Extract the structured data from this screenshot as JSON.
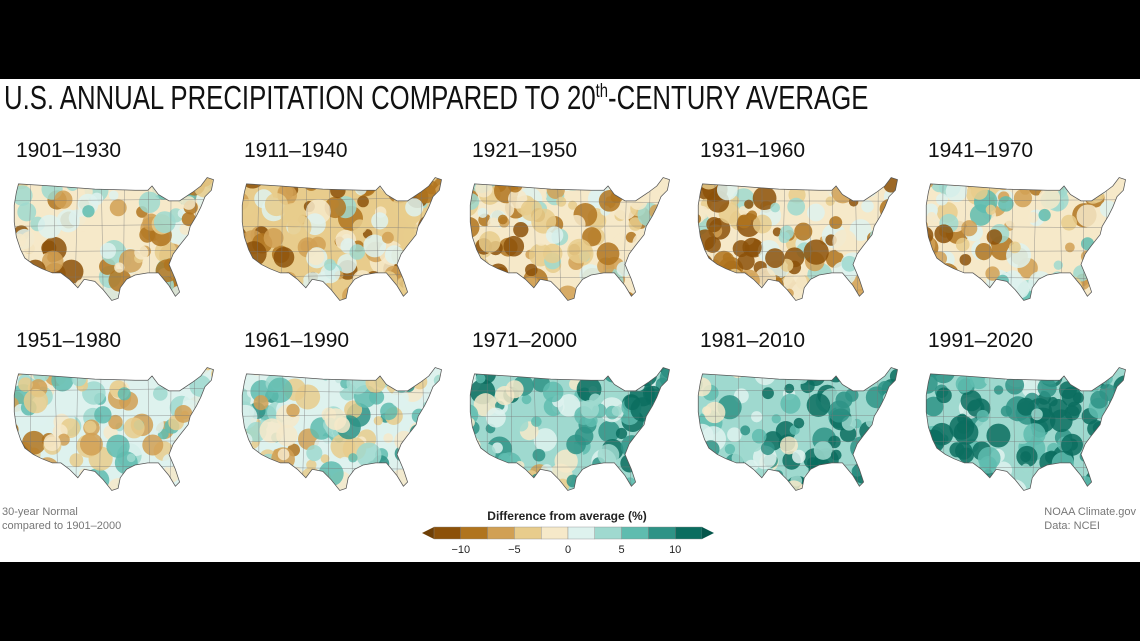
{
  "title": {
    "prefix": "U.S. ANNUAL PRECIPITATION COMPARED TO 20",
    "sup": "th",
    "suffix": "-CENTURY AVERAGE"
  },
  "maps": [
    {
      "label": "1901–1930",
      "anomaly": "mostly drier",
      "bias": -0.15
    },
    {
      "label": "1911–1940",
      "anomaly": "drier",
      "bias": -0.35
    },
    {
      "label": "1921–1950",
      "anomaly": "drier",
      "bias": -0.2
    },
    {
      "label": "1931–1960",
      "anomaly": "drier",
      "bias": -0.3
    },
    {
      "label": "1941–1970",
      "anomaly": "mixed, dry southwest",
      "bias": -0.05
    },
    {
      "label": "1951–1980",
      "anomaly": "mixed, dry southwest",
      "bias": 0.0
    },
    {
      "label": "1961–1990",
      "anomaly": "slightly wetter",
      "bias": 0.15
    },
    {
      "label": "1971–2000",
      "anomaly": "wetter",
      "bias": 0.35
    },
    {
      "label": "1981–2010",
      "anomaly": "wetter",
      "bias": 0.45
    },
    {
      "label": "1991–2020",
      "anomaly": "much wetter east",
      "bias": 0.6
    }
  ],
  "notes": {
    "left_line1": "30-year Normal",
    "left_line2": "compared to 1901–2000",
    "right_line1": "NOAA Climate.gov",
    "right_line2": "Data: NCEI"
  },
  "legend": {
    "title": "Difference from average (%)",
    "ticks": [
      "−10",
      "−5",
      "0",
      "5",
      "10"
    ],
    "colors": [
      "#8c5109",
      "#b0741e",
      "#d1a054",
      "#e8cc8c",
      "#f6e9c9",
      "#def2ee",
      "#9fd9cf",
      "#5fbcaf",
      "#2e9386",
      "#0b6d5f"
    ],
    "arrow_left_color": "#6e3f06",
    "arrow_right_color": "#04564b"
  }
}
